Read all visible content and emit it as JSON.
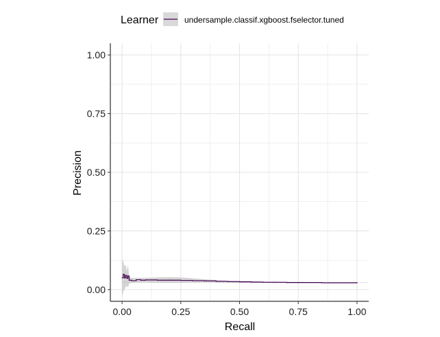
{
  "chart_data": {
    "type": "line",
    "title": "",
    "xlabel": "Recall",
    "ylabel": "Precision",
    "xlim": [
      -0.05,
      1.05
    ],
    "ylim": [
      -0.05,
      1.05
    ],
    "x_ticks": [
      0.0,
      0.25,
      0.5,
      0.75,
      1.0
    ],
    "x_tick_labels": [
      "0.00",
      "0.25",
      "0.50",
      "0.75",
      "1.00"
    ],
    "y_ticks": [
      0.0,
      0.25,
      0.5,
      0.75,
      1.0
    ],
    "y_tick_labels": [
      "0.00",
      "0.25",
      "0.50",
      "0.75",
      "1.00"
    ],
    "grid": true,
    "legend": {
      "position": "top",
      "title": "Learner",
      "entries": [
        "undersample.classif.xgboost.fselector.tuned"
      ]
    },
    "baseline": 0.03,
    "series": [
      {
        "name": "undersample.classif.xgboost.fselector.tuned",
        "color": "#440154",
        "band_color": "#cccccc",
        "x": [
          0.0,
          0.005,
          0.01,
          0.015,
          0.02,
          0.025,
          0.03,
          0.04,
          0.06,
          0.08,
          0.1,
          0.15,
          0.2,
          0.25,
          0.3,
          0.35,
          0.4,
          0.45,
          0.5,
          0.55,
          0.6,
          0.65,
          0.7,
          0.75,
          0.8,
          0.85,
          0.9,
          0.95,
          1.0
        ],
        "y": [
          0.05,
          0.065,
          0.05,
          0.06,
          0.048,
          0.058,
          0.04,
          0.038,
          0.042,
          0.04,
          0.041,
          0.04,
          0.04,
          0.039,
          0.038,
          0.037,
          0.035,
          0.034,
          0.033,
          0.032,
          0.031,
          0.031,
          0.03,
          0.03,
          0.03,
          0.029,
          0.029,
          0.029,
          0.028
        ],
        "lower": [
          -0.03,
          -0.01,
          0.0,
          0.01,
          0.015,
          0.01,
          0.025,
          0.03,
          0.03,
          0.03,
          0.031,
          0.029,
          0.029,
          0.029,
          0.03,
          0.031,
          0.03,
          0.03,
          0.029,
          0.029,
          0.029,
          0.028,
          0.028,
          0.028,
          0.028,
          0.028,
          0.028,
          0.028,
          0.028
        ],
        "upper": [
          0.13,
          0.12,
          0.1,
          0.105,
          0.08,
          0.105,
          0.055,
          0.05,
          0.05,
          0.05,
          0.05,
          0.052,
          0.053,
          0.052,
          0.048,
          0.044,
          0.041,
          0.038,
          0.037,
          0.036,
          0.034,
          0.034,
          0.033,
          0.033,
          0.032,
          0.03,
          0.03,
          0.029,
          0.028
        ]
      }
    ]
  }
}
